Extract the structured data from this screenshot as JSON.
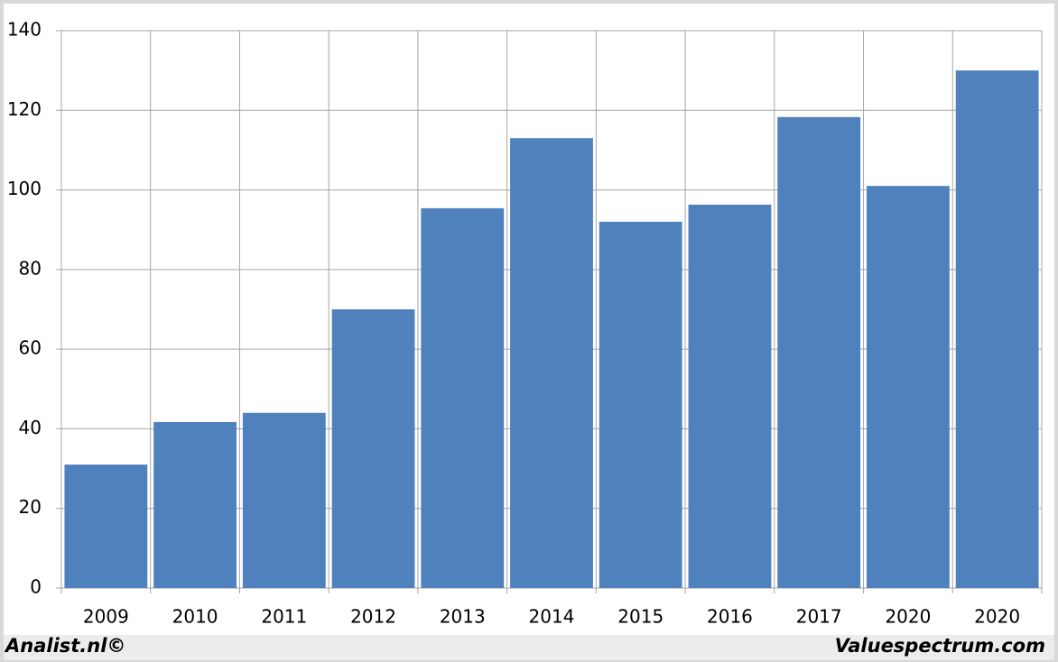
{
  "chart_data": {
    "type": "bar",
    "categories": [
      "2009",
      "2010",
      "2011",
      "2012",
      "2013",
      "2014",
      "2015",
      "2016",
      "2017",
      "2020",
      "2020"
    ],
    "values": [
      31,
      41.7,
      44,
      70,
      95.4,
      113,
      92,
      96.3,
      118.3,
      101,
      130
    ],
    "color": "#4f81bd",
    "ylim": [
      0,
      140
    ],
    "yticks": [
      0,
      20,
      40,
      60,
      80,
      100,
      120,
      140
    ],
    "grid": true
  },
  "footer": {
    "left": "Analist.nl©",
    "right": "Valuespectrum.com"
  }
}
